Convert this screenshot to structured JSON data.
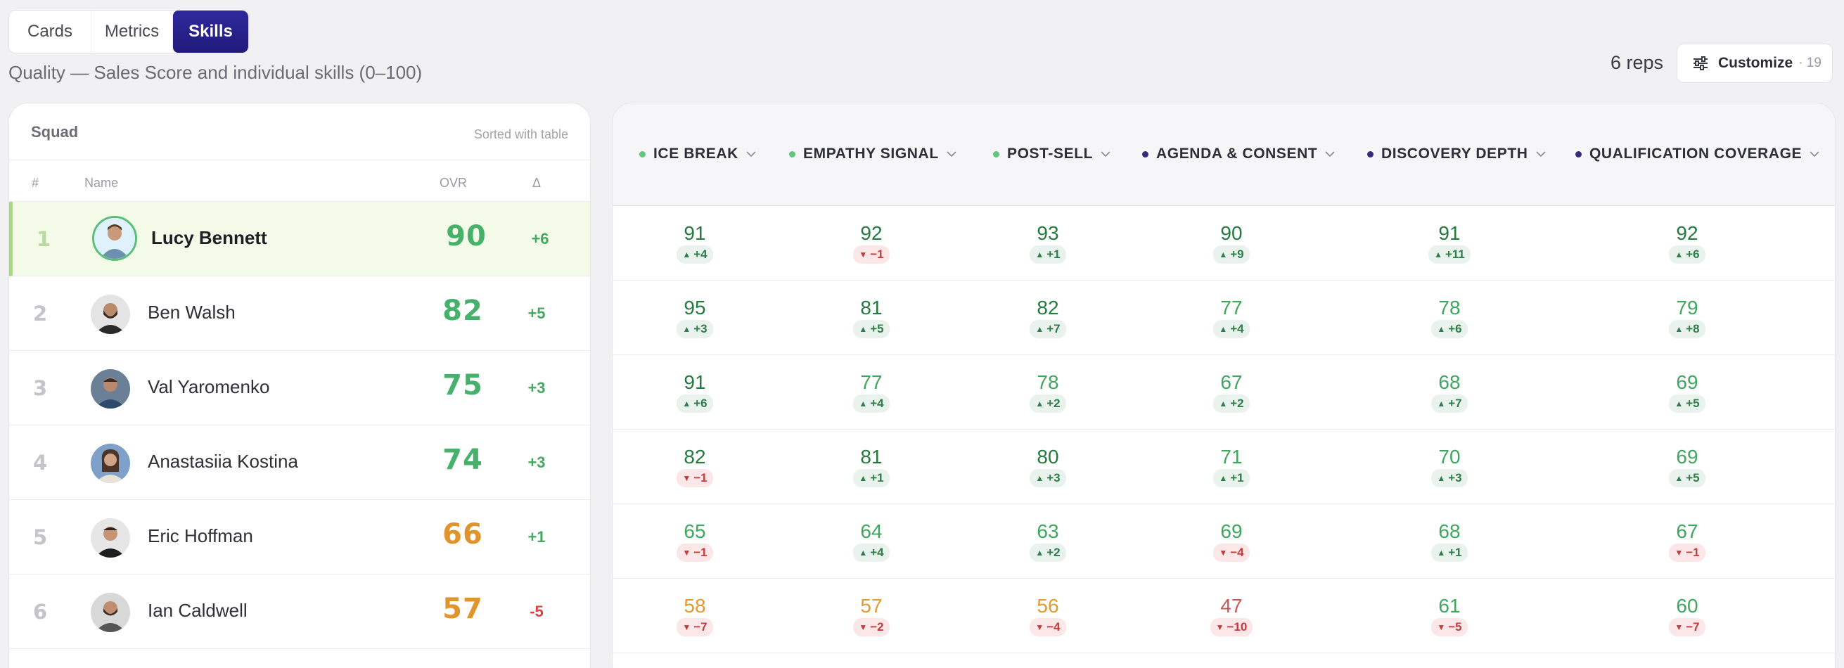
{
  "tabs": [
    {
      "label": "Cards",
      "active": false
    },
    {
      "label": "Metrics",
      "active": false
    },
    {
      "label": "Skills",
      "active": true
    }
  ],
  "subtitle": "Quality — Sales Score and individual skills (0–100)",
  "header": {
    "reps": "6 reps",
    "customize_label": "Customize",
    "customize_count": "· 19"
  },
  "squad": {
    "title": "Squad",
    "sort_note": "Sorted with table",
    "columns": {
      "rank": "#",
      "name": "Name",
      "ovr": "OVR",
      "delta": "Δ"
    },
    "rows": [
      {
        "rank": "1",
        "name": "Lucy Bennett",
        "ovr": "90",
        "delta": "+6"
      },
      {
        "rank": "2",
        "name": "Ben Walsh",
        "ovr": "82",
        "delta": "+5"
      },
      {
        "rank": "3",
        "name": "Val Yaromenko",
        "ovr": "75",
        "delta": "+3"
      },
      {
        "rank": "4",
        "name": "Anastasiia Kostina",
        "ovr": "74",
        "delta": "+3"
      },
      {
        "rank": "5",
        "name": "Eric Hoffman",
        "ovr": "66",
        "delta": "+1"
      },
      {
        "rank": "6",
        "name": "Ian Caldwell",
        "ovr": "57",
        "delta": "-5"
      }
    ]
  },
  "skills": {
    "columns": [
      {
        "label": "ICE BREAK",
        "dot_color": "#5fc77e"
      },
      {
        "label": "EMPATHY SIGNAL",
        "dot_color": "#5fc77e"
      },
      {
        "label": "POST-SELL",
        "dot_color": "#5fc77e"
      },
      {
        "label": "AGENDA & CONSENT",
        "dot_color": "#3b2a7a"
      },
      {
        "label": "DISCOVERY DEPTH",
        "dot_color": "#3b2a7a"
      },
      {
        "label": "QUALIFICATION COVERAGE",
        "dot_color": "#3b2a7a"
      }
    ],
    "rows": [
      [
        {
          "v": "91",
          "d": "+4"
        },
        {
          "v": "92",
          "d": "−1"
        },
        {
          "v": "93",
          "d": "+1"
        },
        {
          "v": "90",
          "d": "+9"
        },
        {
          "v": "91",
          "d": "+11"
        },
        {
          "v": "92",
          "d": "+6"
        }
      ],
      [
        {
          "v": "95",
          "d": "+3"
        },
        {
          "v": "81",
          "d": "+5"
        },
        {
          "v": "82",
          "d": "+7"
        },
        {
          "v": "77",
          "d": "+4"
        },
        {
          "v": "78",
          "d": "+6"
        },
        {
          "v": "79",
          "d": "+8"
        }
      ],
      [
        {
          "v": "91",
          "d": "+6"
        },
        {
          "v": "77",
          "d": "+4"
        },
        {
          "v": "78",
          "d": "+2"
        },
        {
          "v": "67",
          "d": "+2"
        },
        {
          "v": "68",
          "d": "+7"
        },
        {
          "v": "69",
          "d": "+5"
        }
      ],
      [
        {
          "v": "82",
          "d": "−1"
        },
        {
          "v": "81",
          "d": "+1"
        },
        {
          "v": "80",
          "d": "+3"
        },
        {
          "v": "71",
          "d": "+1"
        },
        {
          "v": "70",
          "d": "+3"
        },
        {
          "v": "69",
          "d": "+5"
        }
      ],
      [
        {
          "v": "65",
          "d": "−1"
        },
        {
          "v": "64",
          "d": "+4"
        },
        {
          "v": "63",
          "d": "+2"
        },
        {
          "v": "69",
          "d": "−4"
        },
        {
          "v": "68",
          "d": "+1"
        },
        {
          "v": "67",
          "d": "−1"
        }
      ],
      [
        {
          "v": "58",
          "d": "−7"
        },
        {
          "v": "57",
          "d": "−2"
        },
        {
          "v": "56",
          "d": "−4"
        },
        {
          "v": "47",
          "d": "−10"
        },
        {
          "v": "61",
          "d": "−5"
        },
        {
          "v": "60",
          "d": "−7"
        }
      ]
    ]
  },
  "colors": {
    "accent": "#241d86",
    "good": "#47b06b",
    "warn": "#e0952c",
    "bad": "#d64545"
  },
  "icons": {
    "customize": "sliders-icon",
    "column_menu": "chevron-down-icon"
  }
}
